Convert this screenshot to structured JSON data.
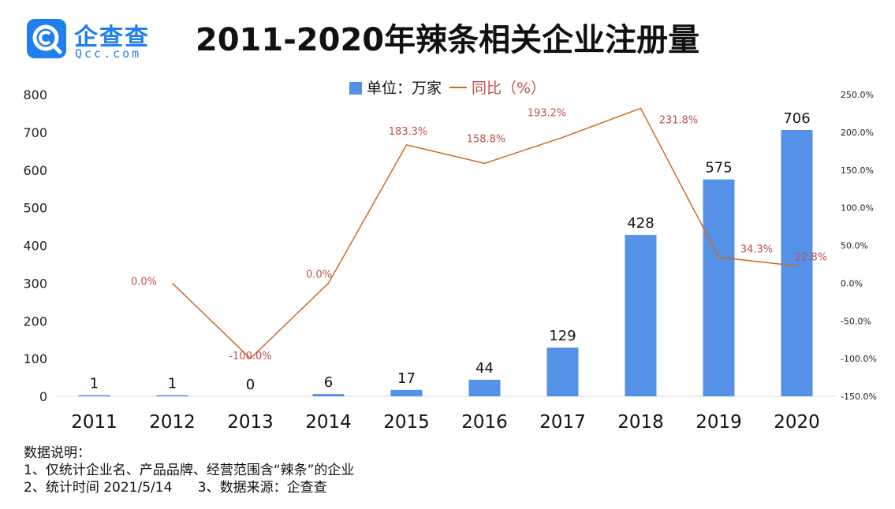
{
  "logo": {
    "text_cn": "企查查",
    "text_en": "Qcc.com",
    "color": "#1f7ef0"
  },
  "header": {
    "title": "2011-2020年辣条相关企业注册量"
  },
  "legend": {
    "bar_label": "单位：万家",
    "line_label": "同比（%）"
  },
  "chart_data": {
    "type": "bar",
    "categories": [
      "2011",
      "2012",
      "2013",
      "2014",
      "2015",
      "2016",
      "2017",
      "2018",
      "2019",
      "2020"
    ],
    "series": [
      {
        "name": "单位：万家",
        "type": "bar",
        "axis": "left",
        "values": [
          1,
          1,
          0,
          6,
          17,
          44,
          129,
          428,
          575,
          706
        ],
        "labels": [
          "1",
          "1",
          "0",
          "6",
          "17",
          "44",
          "129",
          "428",
          "575",
          "706"
        ],
        "color": "#5591e6"
      },
      {
        "name": "同比（%）",
        "type": "line",
        "axis": "right",
        "values": [
          null,
          0.0,
          -100.0,
          0.0,
          183.3,
          158.8,
          193.2,
          231.8,
          34.3,
          22.8
        ],
        "labels": [
          "",
          "0.0%",
          "-100.0%",
          "0.0%",
          "183.3%",
          "158.8%",
          "193.2%",
          "231.8%",
          "34.3%",
          "22.8%"
        ],
        "color": "#d2691e",
        "label_color": "#c0504d"
      }
    ],
    "y_left": {
      "min": 0,
      "max": 800,
      "ticks": [
        "0",
        "100",
        "200",
        "300",
        "400",
        "500",
        "600",
        "700",
        "800"
      ]
    },
    "y_right": {
      "min": -150,
      "max": 250,
      "ticks": [
        "-150.0%",
        "-100.0%",
        "-50.0%",
        "0.0%",
        "50.0%",
        "100.0%",
        "150.0%",
        "200.0%",
        "250.0%"
      ]
    },
    "grid": false,
    "legend_position": "top"
  },
  "notes": {
    "heading": "数据说明：",
    "line1": "1、仅统计企业名、产品品牌、经营范围含“辣条”的企业",
    "line2": "2、统计时间 2021/5/14      3、数据来源：企查查"
  }
}
